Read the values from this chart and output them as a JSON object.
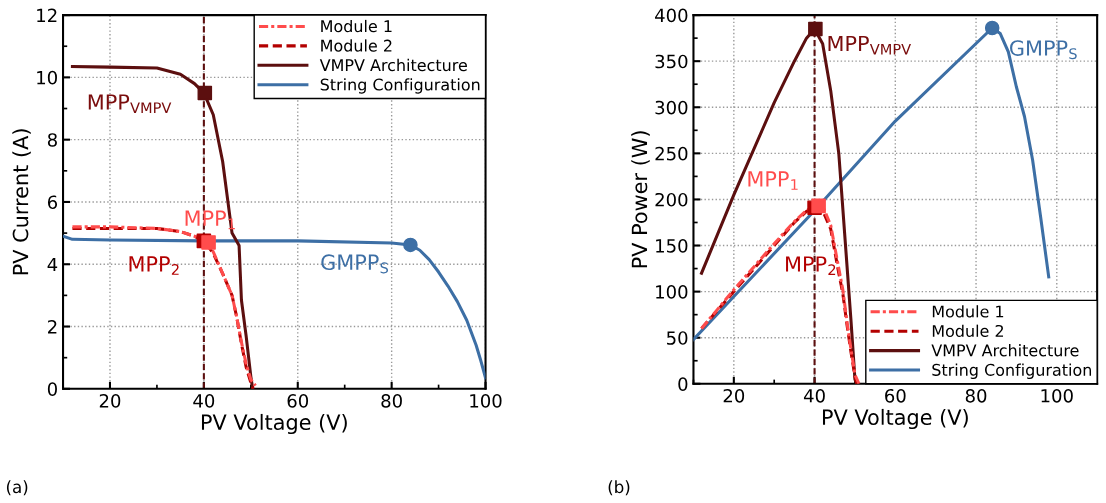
{
  "chart_data": [
    {
      "type": "line",
      "xlabel": "PV Voltage (V)",
      "ylabel": "PV Current (A)",
      "xlim": [
        10,
        100
      ],
      "ylim": [
        0,
        12
      ],
      "xticks": [
        20,
        40,
        60,
        80,
        100
      ],
      "yticks": [
        0,
        2,
        4,
        6,
        8,
        10,
        12
      ],
      "grid": true,
      "legend": "top right",
      "series": [
        {
          "name": "Module 1",
          "color": "#ff4c4c",
          "line_style": "dashdot",
          "x": [
            12,
            20,
            30,
            35,
            38,
            40,
            42,
            44,
            46,
            47,
            48,
            49,
            50,
            51
          ],
          "values": [
            5.2,
            5.2,
            5.15,
            5.05,
            4.9,
            4.75,
            4.4,
            3.7,
            3.0,
            2.3,
            1.5,
            0.8,
            0.3,
            0.1
          ]
        },
        {
          "name": "Module 2",
          "color": "#b30000",
          "line_style": "dashed",
          "x": [
            12,
            20,
            30,
            35,
            38,
            40,
            42,
            44,
            46,
            47,
            48,
            49,
            50,
            50.5
          ],
          "values": [
            5.15,
            5.15,
            5.15,
            5.05,
            4.9,
            4.75,
            4.35,
            3.7,
            3.0,
            2.3,
            1.45,
            0.7,
            0.2,
            0
          ]
        },
        {
          "name": "VMPV Architecture",
          "color": "#5c0f0f",
          "line_style": "solid",
          "x": [
            12,
            20,
            30,
            35,
            38,
            40,
            42,
            44,
            46,
            47.5,
            48,
            49,
            50,
            50.4
          ],
          "values": [
            10.35,
            10.33,
            10.3,
            10.1,
            9.8,
            9.5,
            8.8,
            7.3,
            5.0,
            4.6,
            2.85,
            1.7,
            0.4,
            0
          ]
        },
        {
          "name": "String Configuration",
          "color": "#3d6fa5",
          "line_style": "solid",
          "x": [
            10,
            12,
            20,
            40,
            60,
            80,
            84,
            86,
            88,
            90,
            92,
            94,
            96,
            98,
            99,
            100
          ],
          "values": [
            4.9,
            4.8,
            4.78,
            4.75,
            4.75,
            4.68,
            4.62,
            4.45,
            4.15,
            3.75,
            3.3,
            2.8,
            2.2,
            1.4,
            0.9,
            0.35
          ]
        },
        {
          "type": "scatter",
          "marker": "square",
          "color": "#5c0f0f",
          "x": [
            40.2
          ],
          "values": [
            9.5
          ]
        },
        {
          "type": "scatter",
          "marker": "square",
          "color": "#b30000",
          "x": [
            40
          ],
          "values": [
            4.75
          ]
        },
        {
          "type": "scatter",
          "marker": "square",
          "color": "#ff4c4c",
          "x": [
            41
          ],
          "values": [
            4.7
          ]
        },
        {
          "type": "scatter",
          "marker": "circle",
          "color": "#3d6fa5",
          "x": [
            84
          ],
          "values": [
            4.62
          ]
        }
      ],
      "ref_lines": [
        {
          "axis": "x",
          "value": 40,
          "color": "#5c0f0f",
          "line_style": "dashed"
        }
      ],
      "annotations": [
        {
          "text": "MPP$_{VMPV}$",
          "x": 40.2,
          "y": 9.5
        },
        {
          "text": "MPP$_{1}$",
          "x": 41,
          "y": 4.7
        },
        {
          "text": "MPP$_{2}$",
          "x": 40,
          "y": 4.75
        },
        {
          "text": "GMPP$_{S}$",
          "x": 84,
          "y": 4.62
        },
        "(a)"
      ]
    },
    {
      "type": "line",
      "xlabel": "PV Voltage (V)",
      "ylabel": "PV Power (W)",
      "xlim": [
        10,
        110
      ],
      "ylim": [
        0,
        400
      ],
      "xticks": [
        20,
        40,
        60,
        80,
        100
      ],
      "yticks": [
        0,
        50,
        100,
        150,
        200,
        250,
        300,
        350,
        400
      ],
      "grid": true,
      "legend": "bottom right",
      "series": [
        {
          "name": "Module 1",
          "color": "#ff4c4c",
          "line_style": "dashdot",
          "x": [
            12,
            20,
            30,
            35,
            38,
            40,
            42,
            44,
            46,
            47,
            48,
            49,
            50,
            51
          ],
          "values": [
            60,
            102,
            152,
            176,
            188,
            192,
            193,
            172,
            125,
            102,
            68,
            38,
            10,
            0
          ]
        },
        {
          "name": "Module 2",
          "color": "#b30000",
          "line_style": "dashed",
          "x": [
            12,
            20,
            30,
            35,
            38,
            40,
            42,
            44,
            46,
            47,
            48,
            49,
            50,
            50.5
          ],
          "values": [
            60,
            100,
            150,
            175,
            187,
            191,
            188,
            168,
            120,
            98,
            65,
            35,
            8,
            0
          ]
        },
        {
          "name": "VMPV Architecture",
          "color": "#5c0f0f",
          "line_style": "solid",
          "x": [
            12,
            20,
            30,
            35,
            38,
            40,
            42,
            44,
            46,
            48,
            49,
            50,
            50.4
          ],
          "values": [
            120,
            205,
            305,
            350,
            375,
            385,
            369,
            318,
            250,
            130,
            70,
            5,
            0
          ]
        },
        {
          "name": "String Configuration",
          "color": "#3d6fa5",
          "line_style": "solid",
          "x": [
            10,
            40,
            60,
            84,
            86,
            88,
            90,
            92,
            94,
            96,
            98
          ],
          "values": [
            48,
            188,
            285,
            386,
            380,
            360,
            322,
            290,
            243,
            181,
            116
          ]
        },
        {
          "type": "scatter",
          "marker": "square",
          "color": "#5c0f0f",
          "x": [
            40.2
          ],
          "values": [
            385
          ]
        },
        {
          "type": "scatter",
          "marker": "square",
          "color": "#b30000",
          "x": [
            40
          ],
          "values": [
            191
          ]
        },
        {
          "type": "scatter",
          "marker": "square",
          "color": "#ff4c4c",
          "x": [
            41
          ],
          "values": [
            193
          ]
        },
        {
          "type": "scatter",
          "marker": "circle",
          "color": "#3d6fa5",
          "x": [
            84
          ],
          "values": [
            386
          ]
        }
      ],
      "ref_lines": [
        {
          "axis": "x",
          "value": 40,
          "color": "#5c0f0f",
          "line_style": "dashed"
        }
      ],
      "annotations": [
        {
          "text": "MPP$_{VMPV}$",
          "x": 40.2,
          "y": 385
        },
        {
          "text": "MPP$_{1}$",
          "x": 41,
          "y": 193
        },
        {
          "text": "MPP$_{2}$",
          "x": 40,
          "y": 191
        },
        {
          "text": "GMPP$_{S}$",
          "x": 84,
          "y": 386
        },
        "(b)"
      ]
    }
  ]
}
